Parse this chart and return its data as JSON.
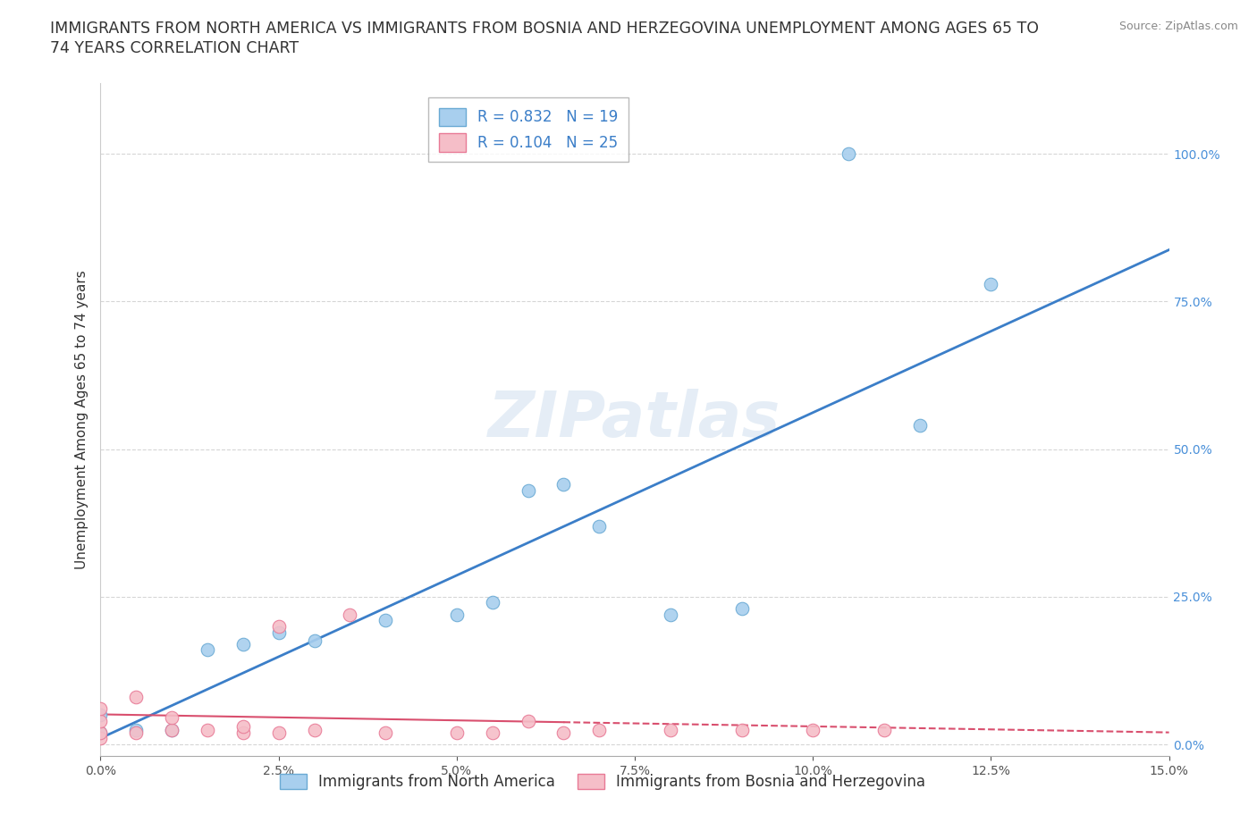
{
  "title_line1": "IMMIGRANTS FROM NORTH AMERICA VS IMMIGRANTS FROM BOSNIA AND HERZEGOVINA UNEMPLOYMENT AMONG AGES 65 TO",
  "title_line2": "74 YEARS CORRELATION CHART",
  "source": "Source: ZipAtlas.com",
  "ylabel": "Unemployment Among Ages 65 to 74 years",
  "xlim": [
    0.0,
    0.15
  ],
  "ylim": [
    -0.02,
    1.12
  ],
  "ytick_vals": [
    0.0,
    0.25,
    0.5,
    0.75,
    1.0
  ],
  "ytick_labels": [
    "0.0%",
    "25.0%",
    "50.0%",
    "75.0%",
    "100.0%"
  ],
  "xtick_vals": [
    0.0,
    0.025,
    0.05,
    0.075,
    0.1,
    0.125,
    0.15
  ],
  "xtick_labels": [
    "0.0%",
    "2.5%",
    "5.0%",
    "7.5%",
    "10.0%",
    "12.5%",
    "15.0%"
  ],
  "R_blue": 0.832,
  "N_blue": 19,
  "R_pink": 0.104,
  "N_pink": 25,
  "legend_label_blue": "Immigrants from North America",
  "legend_label_pink": "Immigrants from Bosnia and Herzegovina",
  "watermark": "ZIPatlas",
  "blue_scatter_color": "#A8CFEE",
  "blue_edge_color": "#6AAAD4",
  "pink_scatter_color": "#F5BEC8",
  "pink_edge_color": "#E87A96",
  "blue_line_color": "#3B7EC8",
  "pink_line_color": "#D94F6E",
  "blue_scatter_x": [
    0.0,
    0.0,
    0.005,
    0.01,
    0.015,
    0.02,
    0.025,
    0.03,
    0.04,
    0.05,
    0.055,
    0.06,
    0.065,
    0.07,
    0.08,
    0.09,
    0.105,
    0.115,
    0.125
  ],
  "blue_scatter_y": [
    0.02,
    0.05,
    0.025,
    0.025,
    0.16,
    0.17,
    0.19,
    0.175,
    0.21,
    0.22,
    0.24,
    0.43,
    0.44,
    0.37,
    0.22,
    0.23,
    1.0,
    0.54,
    0.78
  ],
  "pink_scatter_x": [
    0.0,
    0.0,
    0.0,
    0.0,
    0.005,
    0.005,
    0.01,
    0.01,
    0.015,
    0.02,
    0.02,
    0.025,
    0.025,
    0.03,
    0.035,
    0.04,
    0.05,
    0.055,
    0.06,
    0.065,
    0.07,
    0.08,
    0.09,
    0.1,
    0.11
  ],
  "pink_scatter_y": [
    0.01,
    0.02,
    0.04,
    0.06,
    0.02,
    0.08,
    0.025,
    0.045,
    0.025,
    0.02,
    0.03,
    0.02,
    0.2,
    0.025,
    0.22,
    0.02,
    0.02,
    0.02,
    0.04,
    0.02,
    0.025,
    0.025,
    0.025,
    0.025,
    0.025
  ],
  "grid_color": "#CCCCCC",
  "title_fontsize": 12.5,
  "axis_label_fontsize": 11,
  "tick_fontsize": 10,
  "legend_fontsize": 12,
  "source_fontsize": 9
}
